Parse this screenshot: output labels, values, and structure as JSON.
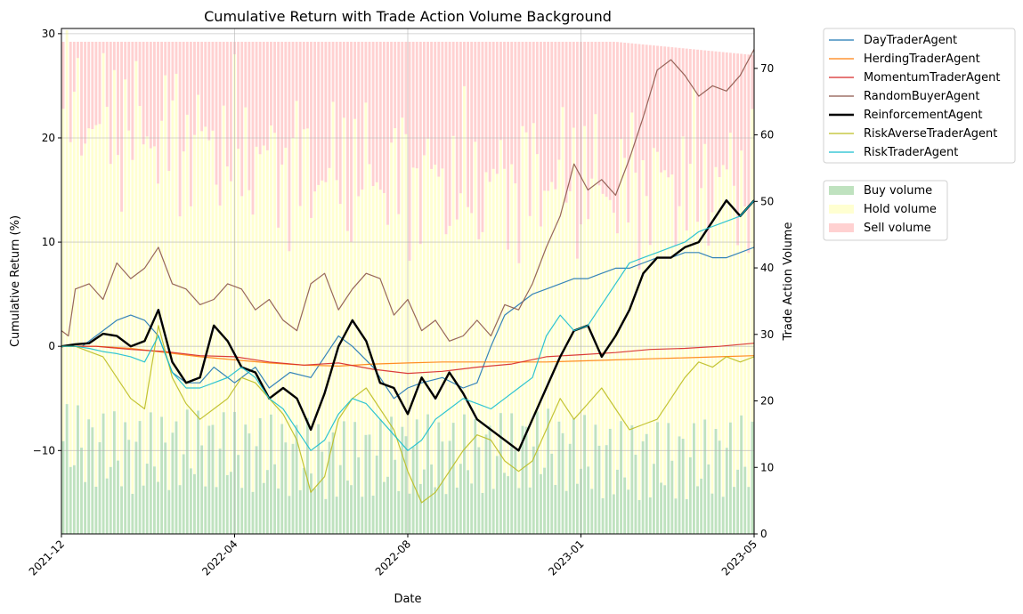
{
  "chart_data": {
    "type": "line",
    "title": "Cumulative Return with Trade Action Volume Background",
    "xlabel": "Date",
    "ylabel": "Cumulative Return (%)",
    "y2label": "Trade Action Volume",
    "x_range": [
      "2021-12",
      "2023-05"
    ],
    "x_ticks": [
      "2021-12",
      "2022-04",
      "2022-08",
      "2023-01",
      "2023-05"
    ],
    "ylim": [
      -18,
      30.5
    ],
    "y_ticks": [
      "−10",
      "0",
      "10",
      "20",
      "30"
    ],
    "y2lim": [
      0,
      76
    ],
    "y2_ticks": [
      "0",
      "10",
      "20",
      "30",
      "40",
      "50",
      "60",
      "70"
    ],
    "grid": true,
    "legend_position": "outside-right",
    "series": [
      {
        "name": "DayTraderAgent",
        "color": "#1f77b4",
        "x": [
          0,
          0.03,
          0.06,
          0.08,
          0.1,
          0.12,
          0.14,
          0.16,
          0.18,
          0.2,
          0.22,
          0.25,
          0.28,
          0.3,
          0.33,
          0.36,
          0.38,
          0.4,
          0.42,
          0.45,
          0.48,
          0.5,
          0.52,
          0.55,
          0.58,
          0.6,
          0.62,
          0.64,
          0.66,
          0.68,
          0.7,
          0.72,
          0.74,
          0.76,
          0.78,
          0.8,
          0.82,
          0.84,
          0.86,
          0.88,
          0.9,
          0.92,
          0.94,
          0.96,
          0.98,
          1.0
        ],
        "values": [
          0,
          0,
          1.5,
          2.5,
          3,
          2.5,
          1,
          -2.5,
          -3.5,
          -3.5,
          -2,
          -3.5,
          -2,
          -4,
          -2.5,
          -3,
          -1,
          1,
          0,
          -2,
          -5,
          -4,
          -3.5,
          -3,
          -4,
          -3.5,
          0,
          3,
          4,
          5,
          5.5,
          6,
          6.5,
          6.5,
          7,
          7.5,
          7.5,
          8,
          8.5,
          8.5,
          9,
          9,
          8.5,
          8.5,
          9,
          9.5
        ]
      },
      {
        "name": "HerdingTraderAgent",
        "color": "#ff7f0e",
        "x": [
          0,
          0.05,
          0.1,
          0.15,
          0.2,
          0.25,
          0.3,
          0.35,
          0.4,
          0.45,
          0.5,
          0.55,
          0.6,
          0.65,
          0.7,
          0.75,
          0.8,
          0.85,
          0.9,
          0.95,
          1.0
        ],
        "values": [
          0,
          0,
          -0.2,
          -0.6,
          -1,
          -1.3,
          -1.6,
          -1.8,
          -1.9,
          -1.7,
          -1.6,
          -1.5,
          -1.5,
          -1.5,
          -1.5,
          -1.4,
          -1.3,
          -1.2,
          -1.1,
          -1.0,
          -0.9
        ]
      },
      {
        "name": "MomentumTraderAgent",
        "color": "#d62728",
        "x": [
          0,
          0.05,
          0.1,
          0.15,
          0.2,
          0.25,
          0.3,
          0.35,
          0.4,
          0.45,
          0.5,
          0.55,
          0.6,
          0.65,
          0.7,
          0.75,
          0.8,
          0.85,
          0.9,
          0.95,
          1.0
        ],
        "values": [
          0,
          0,
          -0.3,
          -0.5,
          -0.9,
          -1.0,
          -1.5,
          -1.8,
          -1.6,
          -2.2,
          -2.6,
          -2.4,
          -2.0,
          -1.7,
          -1.0,
          -0.8,
          -0.6,
          -0.3,
          -0.2,
          0.0,
          0.3
        ]
      },
      {
        "name": "RandomBuyerAgent",
        "color": "#8c564b",
        "x": [
          0,
          0.01,
          0.02,
          0.04,
          0.06,
          0.08,
          0.1,
          0.12,
          0.14,
          0.16,
          0.18,
          0.2,
          0.22,
          0.24,
          0.26,
          0.28,
          0.3,
          0.32,
          0.34,
          0.36,
          0.38,
          0.4,
          0.42,
          0.44,
          0.46,
          0.48,
          0.5,
          0.52,
          0.54,
          0.56,
          0.58,
          0.6,
          0.62,
          0.64,
          0.66,
          0.68,
          0.7,
          0.72,
          0.74,
          0.76,
          0.78,
          0.8,
          0.82,
          0.84,
          0.86,
          0.88,
          0.9,
          0.92,
          0.94,
          0.96,
          0.98,
          1.0
        ],
        "values": [
          1.5,
          1,
          5.5,
          6,
          4.5,
          8,
          6.5,
          7.5,
          9.5,
          6,
          5.5,
          4,
          4.5,
          6,
          5.5,
          3.5,
          4.5,
          2.5,
          1.5,
          6,
          7,
          3.5,
          5.5,
          7,
          6.5,
          3,
          4.5,
          1.5,
          2.5,
          0.5,
          1,
          2.5,
          1,
          4,
          3.5,
          6,
          9.5,
          12.5,
          17.5,
          15,
          16,
          14.5,
          18,
          22,
          26.5,
          27.5,
          26,
          24,
          25,
          24.5,
          26,
          28.5
        ]
      },
      {
        "name": "ReinforcementAgent",
        "color": "#000000",
        "x": [
          0,
          0.02,
          0.04,
          0.06,
          0.08,
          0.1,
          0.12,
          0.14,
          0.16,
          0.18,
          0.2,
          0.22,
          0.24,
          0.26,
          0.28,
          0.3,
          0.32,
          0.34,
          0.36,
          0.38,
          0.4,
          0.42,
          0.44,
          0.46,
          0.48,
          0.5,
          0.52,
          0.54,
          0.56,
          0.58,
          0.6,
          0.62,
          0.64,
          0.66,
          0.68,
          0.7,
          0.72,
          0.74,
          0.76,
          0.78,
          0.8,
          0.82,
          0.84,
          0.86,
          0.88,
          0.9,
          0.92,
          0.94,
          0.96,
          0.98,
          1.0
        ],
        "values": [
          0,
          0.2,
          0.3,
          1.2,
          1,
          0,
          0.5,
          3.5,
          -1.5,
          -3.5,
          -3,
          2,
          0.5,
          -2,
          -2.5,
          -5,
          -4,
          -5,
          -8,
          -4.5,
          0,
          2.5,
          0.5,
          -3.5,
          -4,
          -6.5,
          -3,
          -5,
          -2.5,
          -4.5,
          -7,
          -8,
          -9,
          -10,
          -7,
          -4,
          -1,
          1.5,
          2,
          -1,
          1,
          3.5,
          7,
          8.5,
          8.5,
          9.5,
          10,
          12,
          14,
          12.5,
          14
        ]
      },
      {
        "name": "RiskAverseTraderAgent",
        "color": "#bcbd22",
        "x": [
          0,
          0.02,
          0.04,
          0.06,
          0.08,
          0.1,
          0.12,
          0.14,
          0.16,
          0.18,
          0.2,
          0.22,
          0.24,
          0.26,
          0.28,
          0.3,
          0.32,
          0.34,
          0.36,
          0.38,
          0.4,
          0.42,
          0.44,
          0.46,
          0.48,
          0.5,
          0.52,
          0.54,
          0.56,
          0.58,
          0.6,
          0.62,
          0.64,
          0.66,
          0.68,
          0.7,
          0.72,
          0.74,
          0.76,
          0.78,
          0.8,
          0.82,
          0.84,
          0.86,
          0.88,
          0.9,
          0.92,
          0.94,
          0.96,
          0.98,
          1.0
        ],
        "values": [
          0,
          0,
          -0.5,
          -1,
          -3,
          -5,
          -6,
          2,
          -3,
          -5.5,
          -7,
          -6,
          -5,
          -3,
          -3.5,
          -5,
          -6.5,
          -9,
          -14,
          -12.5,
          -7,
          -5,
          -4,
          -6,
          -8,
          -12,
          -15,
          -14,
          -12,
          -10,
          -8.5,
          -9,
          -11,
          -12,
          -11,
          -8,
          -5,
          -7,
          -5.5,
          -4,
          -6,
          -8,
          -7.5,
          -7,
          -5,
          -3,
          -1.5,
          -2,
          -1,
          -1.5,
          -1
        ]
      },
      {
        "name": "RiskTraderAgent",
        "color": "#17becf",
        "x": [
          0,
          0.02,
          0.04,
          0.06,
          0.08,
          0.1,
          0.12,
          0.14,
          0.16,
          0.18,
          0.2,
          0.22,
          0.24,
          0.26,
          0.28,
          0.3,
          0.32,
          0.34,
          0.36,
          0.38,
          0.4,
          0.42,
          0.44,
          0.46,
          0.48,
          0.5,
          0.52,
          0.54,
          0.56,
          0.58,
          0.6,
          0.62,
          0.64,
          0.66,
          0.68,
          0.7,
          0.72,
          0.74,
          0.76,
          0.78,
          0.8,
          0.82,
          0.84,
          0.86,
          0.88,
          0.9,
          0.92,
          0.94,
          0.96,
          0.98,
          1.0
        ],
        "values": [
          0,
          0,
          -0.2,
          -0.5,
          -0.7,
          -1,
          -1.5,
          1,
          -2.5,
          -4,
          -4,
          -3.5,
          -3,
          -2,
          -3,
          -5,
          -6,
          -8,
          -10,
          -9,
          -6.5,
          -5,
          -5.5,
          -7,
          -8.5,
          -10,
          -9,
          -7,
          -6,
          -5,
          -5.5,
          -6,
          -5,
          -4,
          -3,
          1,
          3,
          1.5,
          2,
          4,
          6,
          8,
          8.5,
          9,
          9.5,
          10,
          11,
          11.5,
          12,
          12.5,
          14
        ]
      }
    ],
    "volume_legend": [
      "Buy volume",
      "Hold volume",
      "Sell volume"
    ],
    "volume_colors": {
      "buy": "#2ca02c",
      "hold": "#ffff66",
      "sell": "#ff6666"
    },
    "volume_profile": {
      "t": [
        0,
        0.1,
        0.2,
        0.3,
        0.4,
        0.5,
        0.6,
        0.7,
        0.8,
        0.9,
        1.0
      ],
      "total": [
        74,
        74,
        74,
        74,
        74,
        74,
        74,
        74,
        74,
        73,
        72
      ],
      "buy": [
        14,
        12,
        13,
        12,
        11,
        12,
        12,
        13,
        11,
        11,
        12
      ],
      "hold": [
        50,
        49,
        46,
        44,
        43,
        42,
        40,
        41,
        41,
        42,
        41
      ]
    }
  }
}
